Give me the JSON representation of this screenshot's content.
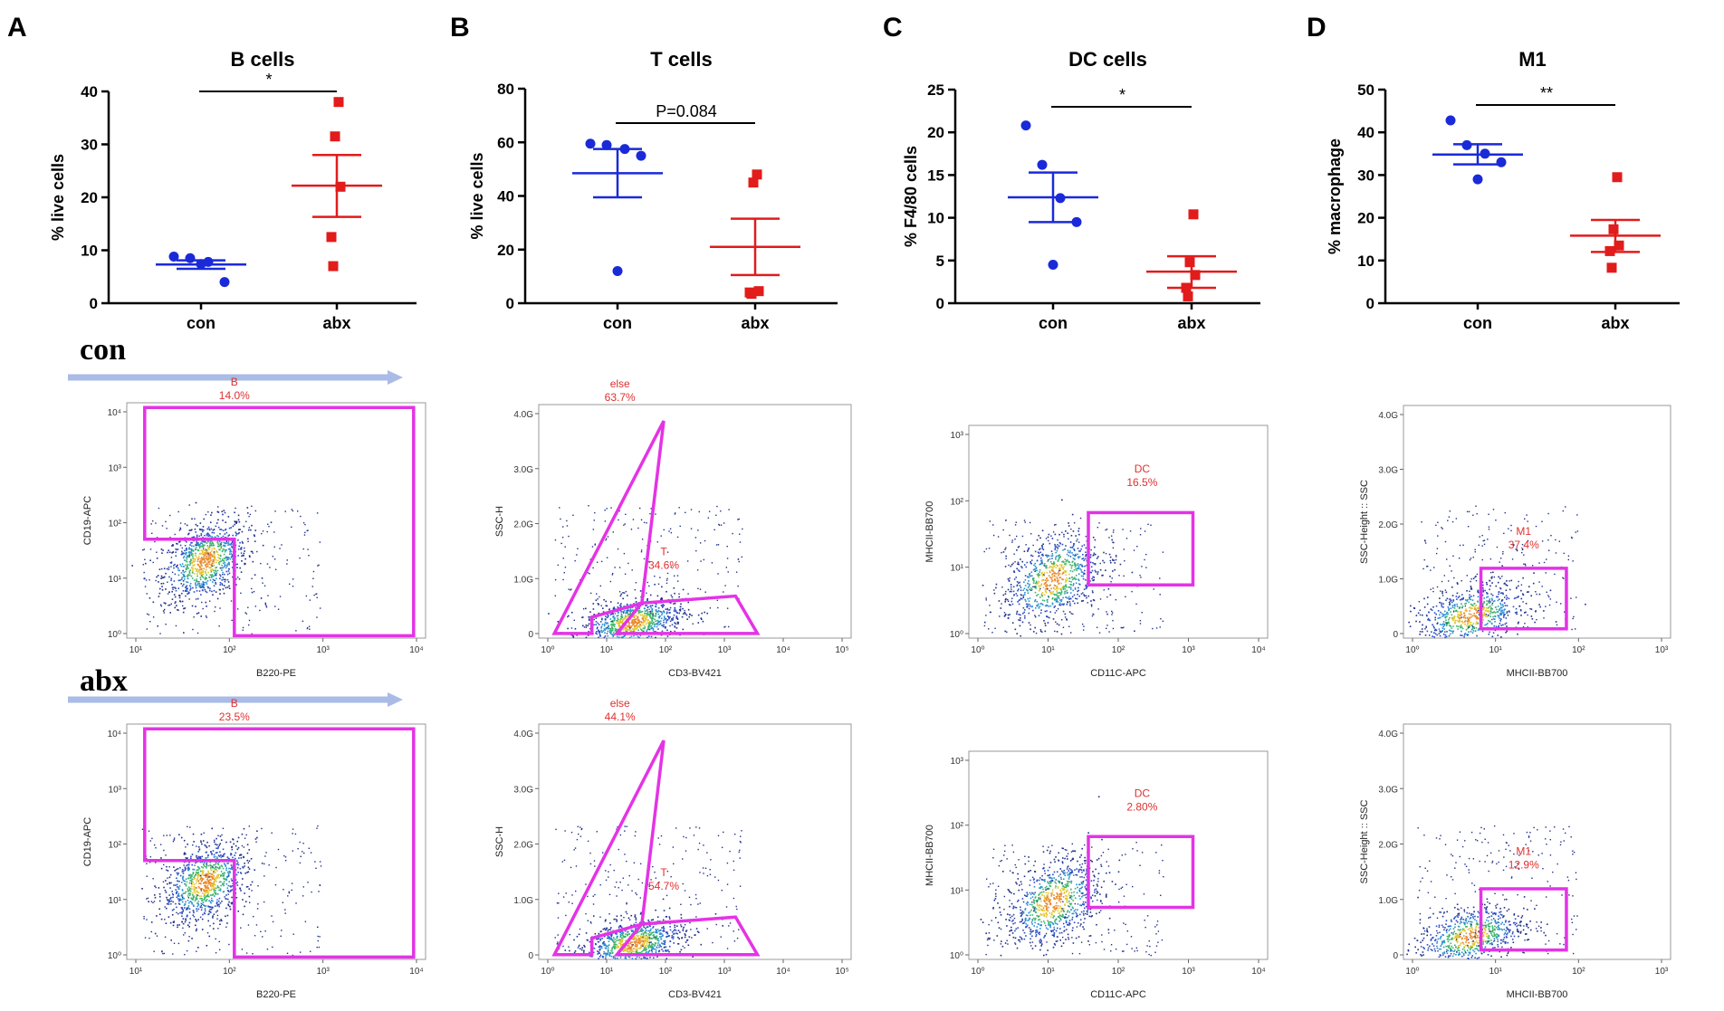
{
  "panel_letters": [
    "A",
    "B",
    "C",
    "D"
  ],
  "row_labels": {
    "con": "con",
    "abx": "abx"
  },
  "colors": {
    "con": "#1a2ad8",
    "abx": "#e21b1b",
    "gate": "#e433e6",
    "gate_label": "#e03030",
    "arrow": "#a9bbe6",
    "dots": "#1f2f8a"
  },
  "chart_data": [
    {
      "id": "b-cells",
      "type": "scatter",
      "title": "B cells",
      "xlabel": "",
      "ylabel": "% live cells",
      "ylim": [
        0,
        40
      ],
      "yticks": [
        "0",
        "10",
        "20",
        "30",
        "40"
      ],
      "categories": [
        "con",
        "abx"
      ],
      "series": [
        {
          "name": "con",
          "values": [
            8.8,
            8.5,
            7.8,
            4.0,
            7.4
          ],
          "mean": 7.3,
          "sem_low": 6.5,
          "sem_high": 8.1
        },
        {
          "name": "abx",
          "values": [
            38,
            31.5,
            22,
            12.5,
            7
          ],
          "mean": 22.2,
          "sem_low": 16.3,
          "sem_high": 28.0
        }
      ],
      "annotation": "*"
    },
    {
      "id": "t-cells",
      "type": "scatter",
      "title": "T cells",
      "xlabel": "",
      "ylabel": "% live cells",
      "ylim": [
        0,
        80
      ],
      "yticks": [
        "0",
        "20",
        "40",
        "60",
        "80"
      ],
      "categories": [
        "con",
        "abx"
      ],
      "series": [
        {
          "name": "con",
          "values": [
            59.5,
            59.0,
            57.5,
            55.0,
            12.0
          ],
          "mean": 48.5,
          "sem_low": 39.5,
          "sem_high": 57.5
        },
        {
          "name": "abx",
          "values": [
            48,
            45,
            4.5,
            4.0,
            3.5
          ],
          "mean": 21.0,
          "sem_low": 10.5,
          "sem_high": 31.5
        }
      ],
      "annotation": "P=0.084"
    },
    {
      "id": "dc-cells",
      "type": "scatter",
      "title": "DC cells",
      "xlabel": "",
      "ylabel": "% F4/80 cells",
      "ylim": [
        0,
        25
      ],
      "yticks": [
        "0",
        "5",
        "10",
        "15",
        "20",
        "25"
      ],
      "categories": [
        "con",
        "abx"
      ],
      "series": [
        {
          "name": "con",
          "values": [
            20.8,
            16.2,
            12.3,
            9.5,
            4.5
          ],
          "mean": 12.4,
          "sem_low": 9.5,
          "sem_high": 15.3
        },
        {
          "name": "abx",
          "values": [
            10.4,
            4.8,
            3.3,
            1.8,
            0.8
          ],
          "mean": 3.7,
          "sem_low": 1.8,
          "sem_high": 5.5
        }
      ],
      "annotation": "*"
    },
    {
      "id": "m1",
      "type": "scatter",
      "title": "M1",
      "xlabel": "",
      "ylabel": "% macrophage",
      "ylim": [
        0,
        50
      ],
      "yticks": [
        "0",
        "10",
        "20",
        "30",
        "40",
        "50"
      ],
      "categories": [
        "con",
        "abx"
      ],
      "series": [
        {
          "name": "con",
          "values": [
            42.8,
            37.0,
            35.0,
            33.0,
            29.0
          ],
          "mean": 34.8,
          "sem_low": 32.5,
          "sem_high": 37.2
        },
        {
          "name": "abx",
          "values": [
            29.5,
            17.3,
            13.5,
            12.2,
            8.3
          ],
          "mean": 15.8,
          "sem_low": 12.0,
          "sem_high": 19.5
        }
      ],
      "annotation": "**"
    }
  ],
  "flow_plots": [
    {
      "id": "con-b",
      "row": "con",
      "xlabel": "B220-PE",
      "ylabel": "CD19-APC",
      "xticks": [
        "10¹",
        "10²",
        "10³",
        "10⁴"
      ],
      "yticks": [
        "10⁰",
        "10¹",
        "10²",
        "10³",
        "10⁴"
      ],
      "gates": [
        {
          "name": "B",
          "value": "14.0%"
        }
      ]
    },
    {
      "id": "con-t",
      "row": "con",
      "xlabel": "CD3-BV421",
      "ylabel": "SSC-H",
      "xticks": [
        "10⁰",
        "10¹",
        "10²",
        "10³",
        "10⁴",
        "10⁵"
      ],
      "yticks": [
        "0",
        "1.0G",
        "2.0G",
        "3.0G",
        "4.0G"
      ],
      "gates": [
        {
          "name": "else",
          "value": "63.7%"
        },
        {
          "name": "T",
          "value": "34.6%"
        }
      ]
    },
    {
      "id": "con-dc",
      "row": "con",
      "xlabel": "CD11C-APC",
      "ylabel": "MHCII-BB700",
      "xticks": [
        "10⁰",
        "10¹",
        "10²",
        "10³",
        "10⁴"
      ],
      "yticks": [
        "10⁰",
        "10¹",
        "10²",
        "10³"
      ],
      "gates": [
        {
          "name": "DC",
          "value": "16.5%"
        }
      ]
    },
    {
      "id": "con-m1",
      "row": "con",
      "xlabel": "MHCII-BB700",
      "ylabel": "SSC-Height :: SSC",
      "xticks": [
        "10⁰",
        "10¹",
        "10²",
        "10³"
      ],
      "yticks": [
        "0",
        "1.0G",
        "2.0G",
        "3.0G",
        "4.0G"
      ],
      "gates": [
        {
          "name": "M1",
          "value": "37.4%"
        }
      ]
    },
    {
      "id": "abx-b",
      "row": "abx",
      "xlabel": "B220-PE",
      "ylabel": "CD19-APC",
      "xticks": [
        "10¹",
        "10²",
        "10³",
        "10⁴"
      ],
      "yticks": [
        "10⁰",
        "10¹",
        "10²",
        "10³",
        "10⁴"
      ],
      "gates": [
        {
          "name": "B",
          "value": "23.5%"
        }
      ]
    },
    {
      "id": "abx-t",
      "row": "abx",
      "xlabel": "CD3-BV421",
      "ylabel": "SSC-H",
      "xticks": [
        "10⁰",
        "10¹",
        "10²",
        "10³",
        "10⁴",
        "10⁵"
      ],
      "yticks": [
        "0",
        "1.0G",
        "2.0G",
        "3.0G",
        "4.0G"
      ],
      "gates": [
        {
          "name": "else",
          "value": "44.1%"
        },
        {
          "name": "T",
          "value": "54.7%"
        }
      ]
    },
    {
      "id": "abx-dc",
      "row": "abx",
      "xlabel": "CD11C-APC",
      "ylabel": "MHCII-BB700",
      "xticks": [
        "10⁰",
        "10¹",
        "10²",
        "10³",
        "10⁴"
      ],
      "yticks": [
        "10⁰",
        "10¹",
        "10²",
        "10³"
      ],
      "gates": [
        {
          "name": "DC",
          "value": "2.80%"
        }
      ]
    },
    {
      "id": "abx-m1",
      "row": "abx",
      "xlabel": "MHCII-BB700",
      "ylabel": "SSC-Height :: SSC",
      "xticks": [
        "10⁰",
        "10¹",
        "10²",
        "10³"
      ],
      "yticks": [
        "0",
        "1.0G",
        "2.0G",
        "3.0G",
        "4.0G"
      ],
      "gates": [
        {
          "name": "M1",
          "value": "12.9%"
        }
      ]
    }
  ]
}
